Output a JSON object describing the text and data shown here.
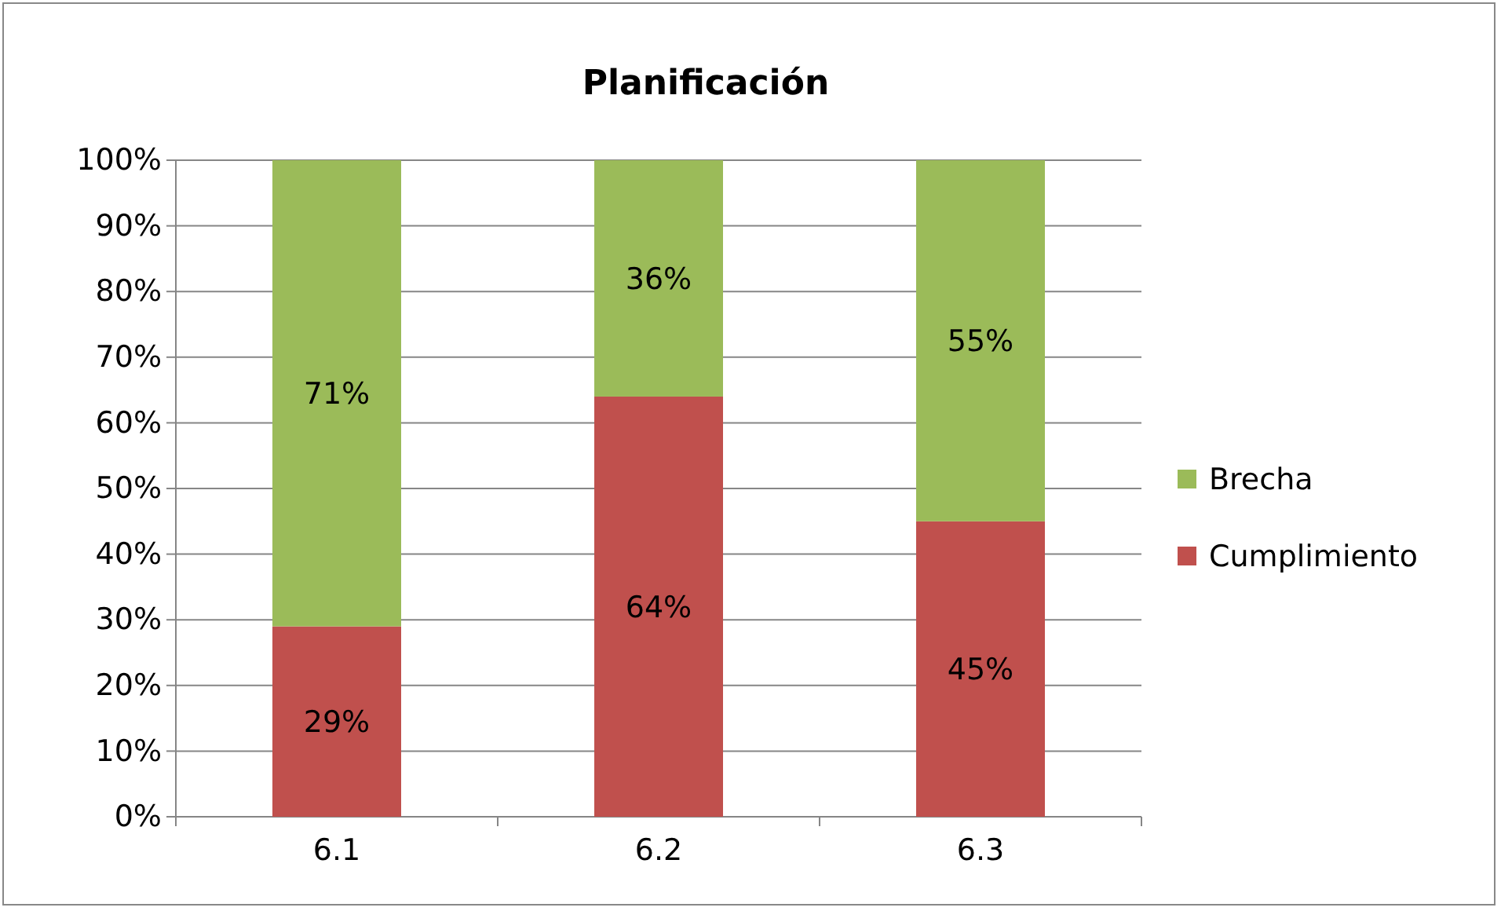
{
  "chart_data": {
    "type": "bar",
    "title": "Planificación",
    "categories": [
      "6.1",
      "6.2",
      "6.3"
    ],
    "stacked": true,
    "series": [
      {
        "name": "Cumplimiento",
        "color": "#c0504d",
        "values": [
          29,
          64,
          45
        ],
        "value_labels": [
          "29%",
          "64%",
          "45%"
        ]
      },
      {
        "name": "Brecha",
        "color": "#9bbb59",
        "values": [
          71,
          36,
          55
        ],
        "value_labels": [
          "71%",
          "36%",
          "55%"
        ]
      }
    ],
    "ylim": [
      0,
      100
    ],
    "yticks": [
      {
        "value": 0,
        "label": "0%"
      },
      {
        "value": 10,
        "label": "10%"
      },
      {
        "value": 20,
        "label": "20%"
      },
      {
        "value": 30,
        "label": "30%"
      },
      {
        "value": 40,
        "label": "40%"
      },
      {
        "value": 50,
        "label": "50%"
      },
      {
        "value": 60,
        "label": "60%"
      },
      {
        "value": 70,
        "label": "70%"
      },
      {
        "value": 80,
        "label": "80%"
      },
      {
        "value": 90,
        "label": "90%"
      },
      {
        "value": 100,
        "label": "100%"
      }
    ],
    "grid": "y",
    "legend": "right"
  }
}
